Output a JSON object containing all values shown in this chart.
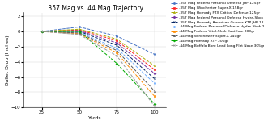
{
  "title": ".357 Mag vs .44 Mag Trajectory",
  "xlabel": "Yards",
  "ylabel": "Bullet Drop (Inches)",
  "xlim": [
    13,
    108
  ],
  "ylim": [
    -10,
    2.5
  ],
  "xticks": [
    25,
    50,
    75,
    100
  ],
  "yticks": [
    -10,
    -8,
    -6,
    -4,
    -2,
    0,
    2
  ],
  "x": [
    25,
    50,
    75,
    100
  ],
  "series": [
    {
      "label": ".357 Mag Federal Personal Defense JHP 125gr",
      "color": "#4472C4",
      "marker": "o",
      "linestyle": "--",
      "values": [
        0,
        0.6,
        -0.6,
        -3.0
      ]
    },
    {
      "label": ".357 Mag Winchester Super-X 158gr",
      "color": "#FF2222",
      "marker": "s",
      "linestyle": "--",
      "values": [
        0,
        0.2,
        -1.2,
        -5.0
      ]
    },
    {
      "label": ".357 Mag Hornady FTX Critical Defense 125gr",
      "color": "#AAAA00",
      "marker": "^",
      "linestyle": "--",
      "values": [
        0,
        0.3,
        -1.0,
        -4.5
      ]
    },
    {
      "label": ".357 Mag Federal Personal Defense Hydra-Shok Low Recoil 130gr",
      "color": "#7030A0",
      "marker": "D",
      "linestyle": "--",
      "values": [
        0,
        0.1,
        -1.5,
        -5.5
      ]
    },
    {
      "label": ".357 Mag Hornady American Gunner XTP JHP 125gr",
      "color": "#002060",
      "marker": "x",
      "linestyle": "--",
      "values": [
        0,
        0.0,
        -1.8,
        -6.2
      ]
    },
    {
      "label": ".44 Mag Federal Personal Defense Hydra-Shok 240gr",
      "color": "#70AEFF",
      "marker": "o",
      "linestyle": "--",
      "values": [
        0,
        -0.1,
        -2.2,
        -6.8
      ]
    },
    {
      "label": ".44 Mag Federal Vital-Shok CastCore 300gr",
      "color": "#FF8C00",
      "marker": "s",
      "linestyle": "--",
      "values": [
        0,
        -0.3,
        -2.8,
        -8.5
      ]
    },
    {
      "label": ".44 Mag Winchester Super-X 240gr",
      "color": "#595959",
      "marker": "^",
      "linestyle": "--",
      "values": [
        0,
        -0.2,
        -2.5,
        -7.8
      ]
    },
    {
      "label": ".44 Mag Hornady XTP 200gr",
      "color": "#00AA00",
      "marker": "D",
      "linestyle": "--",
      "values": [
        0,
        -0.0,
        -4.2,
        -9.5
      ]
    },
    {
      "label": ".44 Mag Buffalo Bore Lead Long Flat Nose 305gr",
      "color": "#999999",
      "marker": "x",
      "linestyle": "--",
      "values": [
        0,
        -0.4,
        -3.2,
        -9.8
      ]
    }
  ],
  "bg_color": "#ffffff",
  "grid_color": "#d0d0d0",
  "title_fontsize": 5.5,
  "label_fontsize": 4.5,
  "tick_fontsize": 4,
  "legend_fontsize": 3.2,
  "legend_label_wrap": 28
}
